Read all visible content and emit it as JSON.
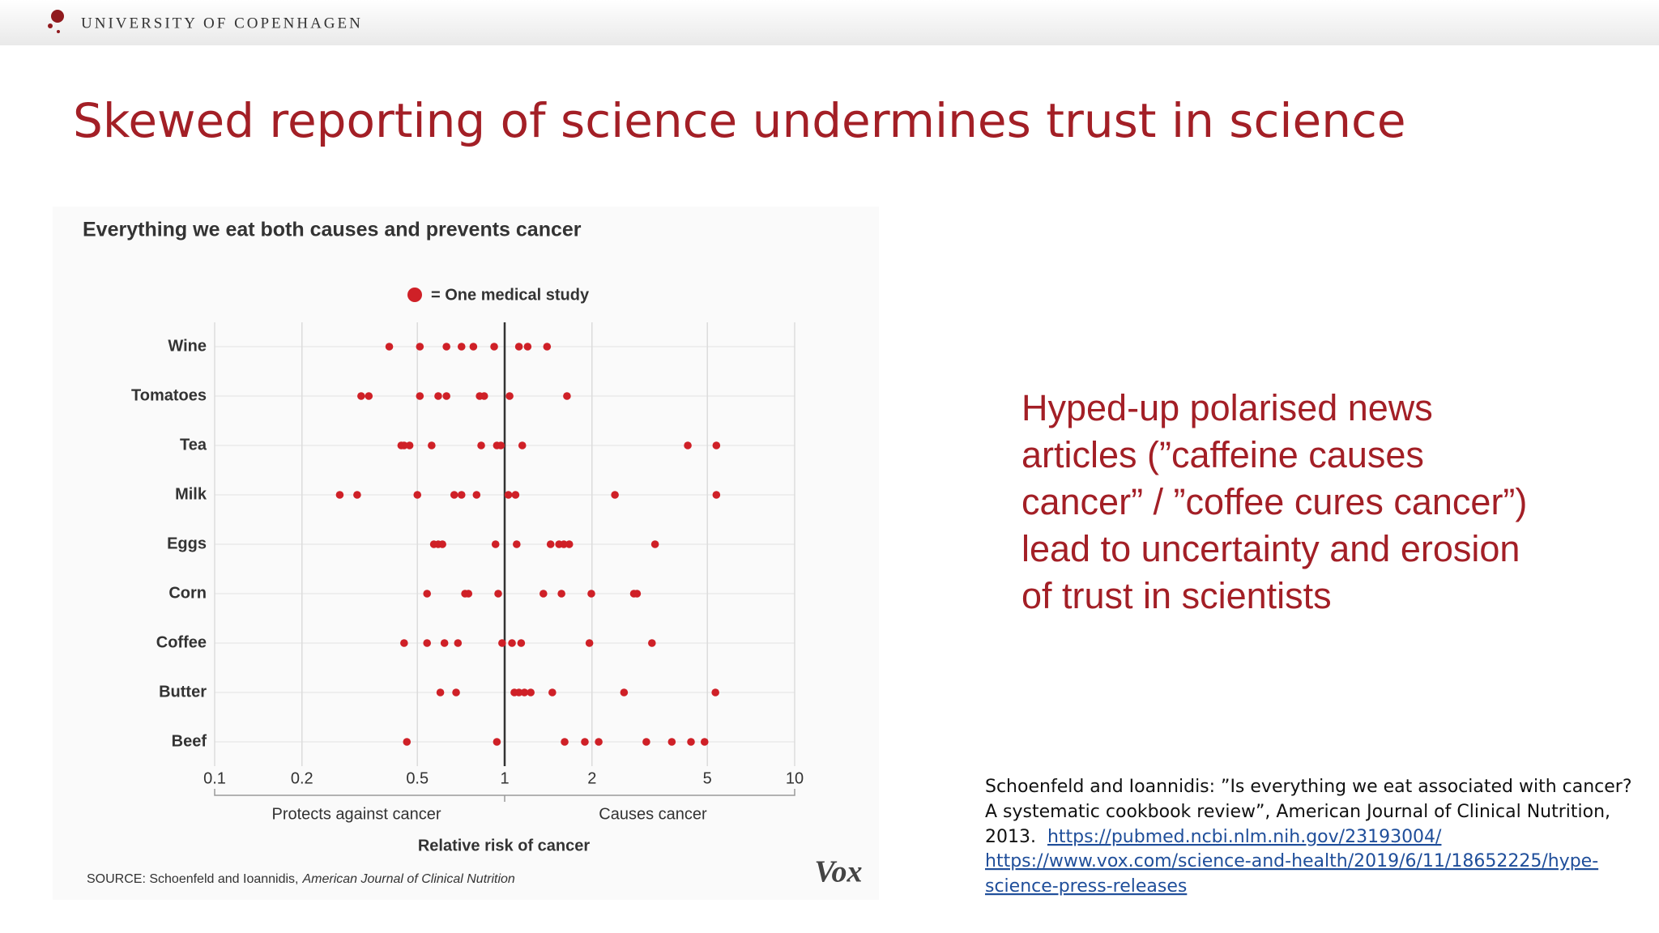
{
  "header": {
    "logo": "UNIVERSITY OF COPENHAGEN",
    "title": "Skewed reporting of science undermines trust in science"
  },
  "chart_data": {
    "type": "strip",
    "title": "Everything we eat both causes and prevents cancer",
    "categories": [
      "Wine",
      "Tomatoes",
      "Tea",
      "Milk",
      "Eggs",
      "Corn",
      "Coffee",
      "Butter",
      "Beef"
    ],
    "series": [
      {
        "name": "= One medical study",
        "color": "#cf2027",
        "values": [
          [
            0.4,
            0.51,
            0.63,
            0.71,
            0.78,
            0.92,
            1.12,
            1.2,
            1.4
          ],
          [
            0.32,
            0.34,
            0.51,
            0.59,
            0.63,
            0.82,
            0.85,
            1.04,
            1.64
          ],
          [
            0.44,
            0.45,
            0.47,
            0.56,
            0.83,
            0.94,
            0.97,
            1.15,
            4.28,
            5.37
          ],
          [
            0.27,
            0.31,
            0.5,
            0.67,
            0.71,
            0.8,
            1.03,
            1.09,
            2.4,
            5.37
          ],
          [
            0.57,
            0.59,
            0.61,
            0.93,
            1.1,
            1.44,
            1.54,
            1.6,
            1.67,
            3.3
          ],
          [
            0.54,
            0.73,
            0.75,
            0.95,
            1.36,
            1.57,
            1.99,
            2.79,
            2.86
          ],
          [
            0.45,
            0.54,
            0.62,
            0.69,
            0.98,
            1.06,
            1.14,
            1.96,
            3.22
          ],
          [
            0.6,
            0.68,
            1.08,
            1.12,
            1.17,
            1.23,
            1.46,
            2.58,
            5.33
          ],
          [
            0.46,
            0.94,
            1.61,
            1.89,
            2.11,
            3.08,
            3.77,
            4.39,
            4.89
          ]
        ]
      }
    ],
    "xlim": [
      0.1,
      10
    ],
    "xticks": [
      0.1,
      0.2,
      0.5,
      1,
      2,
      5,
      10
    ],
    "x_log": true,
    "grid": true,
    "x_label": "Relative risk of cancer",
    "annotations": [
      "Protects against cancer",
      "Causes cancer"
    ],
    "source": "SOURCE: Schoenfeld and Ioannidis,",
    "source_journal": "American Journal of Clinical Nutrition",
    "logo": "Vox"
  },
  "body": {
    "lines": [
      "Hyped-up polarised news",
      "articles (”caffeine causes",
      "cancer” / ”coffee cures cancer”)",
      "lead to uncertainty and erosion",
      "of trust in scientists"
    ]
  },
  "reference": {
    "lines": [
      "Schoenfeld and Ioannidis: ”Is everything we eat associated with cancer?",
      "A systematic cookbook review”, American Journal of Clinical Nutrition,",
      "2013."
    ],
    "links": [
      "https://pubmed.ncbi.nlm.nih.gov/23193004/",
      "https://www.vox.com/science-and-health/2019/6/11/18652225/hype-",
      "science-press-releases"
    ]
  }
}
